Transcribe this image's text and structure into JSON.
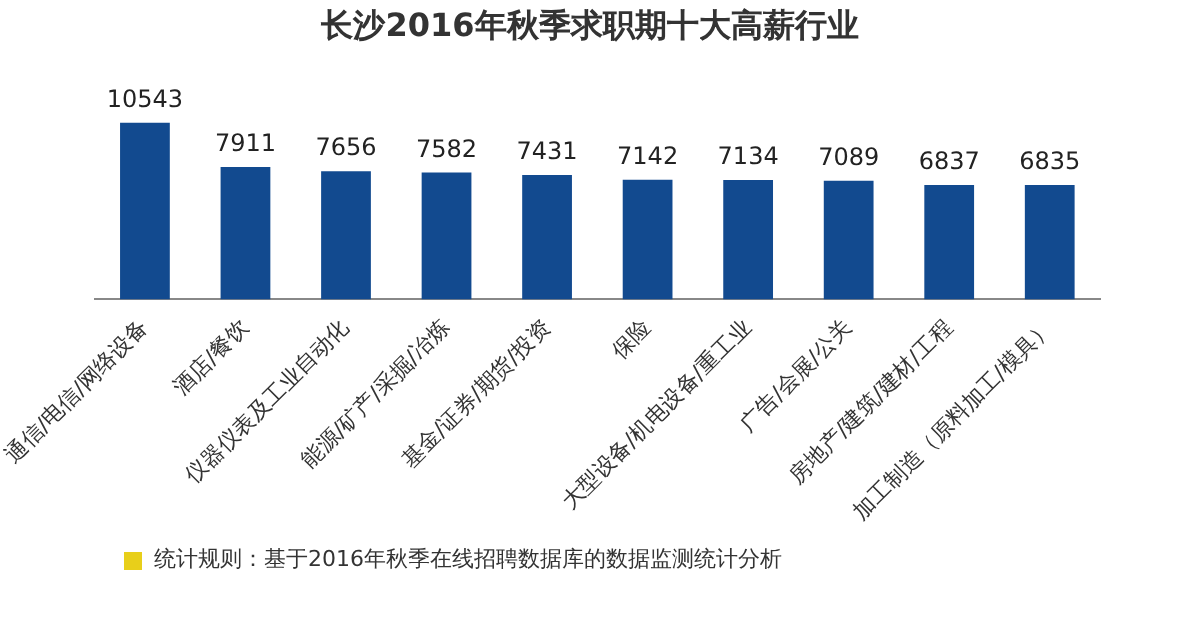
{
  "chart_data": {
    "type": "bar",
    "title": "长沙2016年秋季求职期十大高薪行业",
    "categories": [
      "通信/电信/网络设备",
      "酒店/餐饮",
      "仪器仪表及工业自动化",
      "能源/矿产/采掘/冶炼",
      "基金/证券/期货/投资",
      "保险",
      "大型设备/机电设备/重工业",
      "广告/会展/公关",
      "房地产/建筑/建材/工程",
      "加工制造（原料加工/模具）"
    ],
    "values": [
      10543,
      7911,
      7656,
      7582,
      7431,
      7142,
      7134,
      7089,
      6837,
      6835
    ],
    "color": "#124a8f",
    "tick_labels": "x",
    "grid": false,
    "data_labels": true,
    "annotations": [
      "统计规则：基于2016年秋季在线招聘数据库的数据监测统计分析"
    ]
  }
}
